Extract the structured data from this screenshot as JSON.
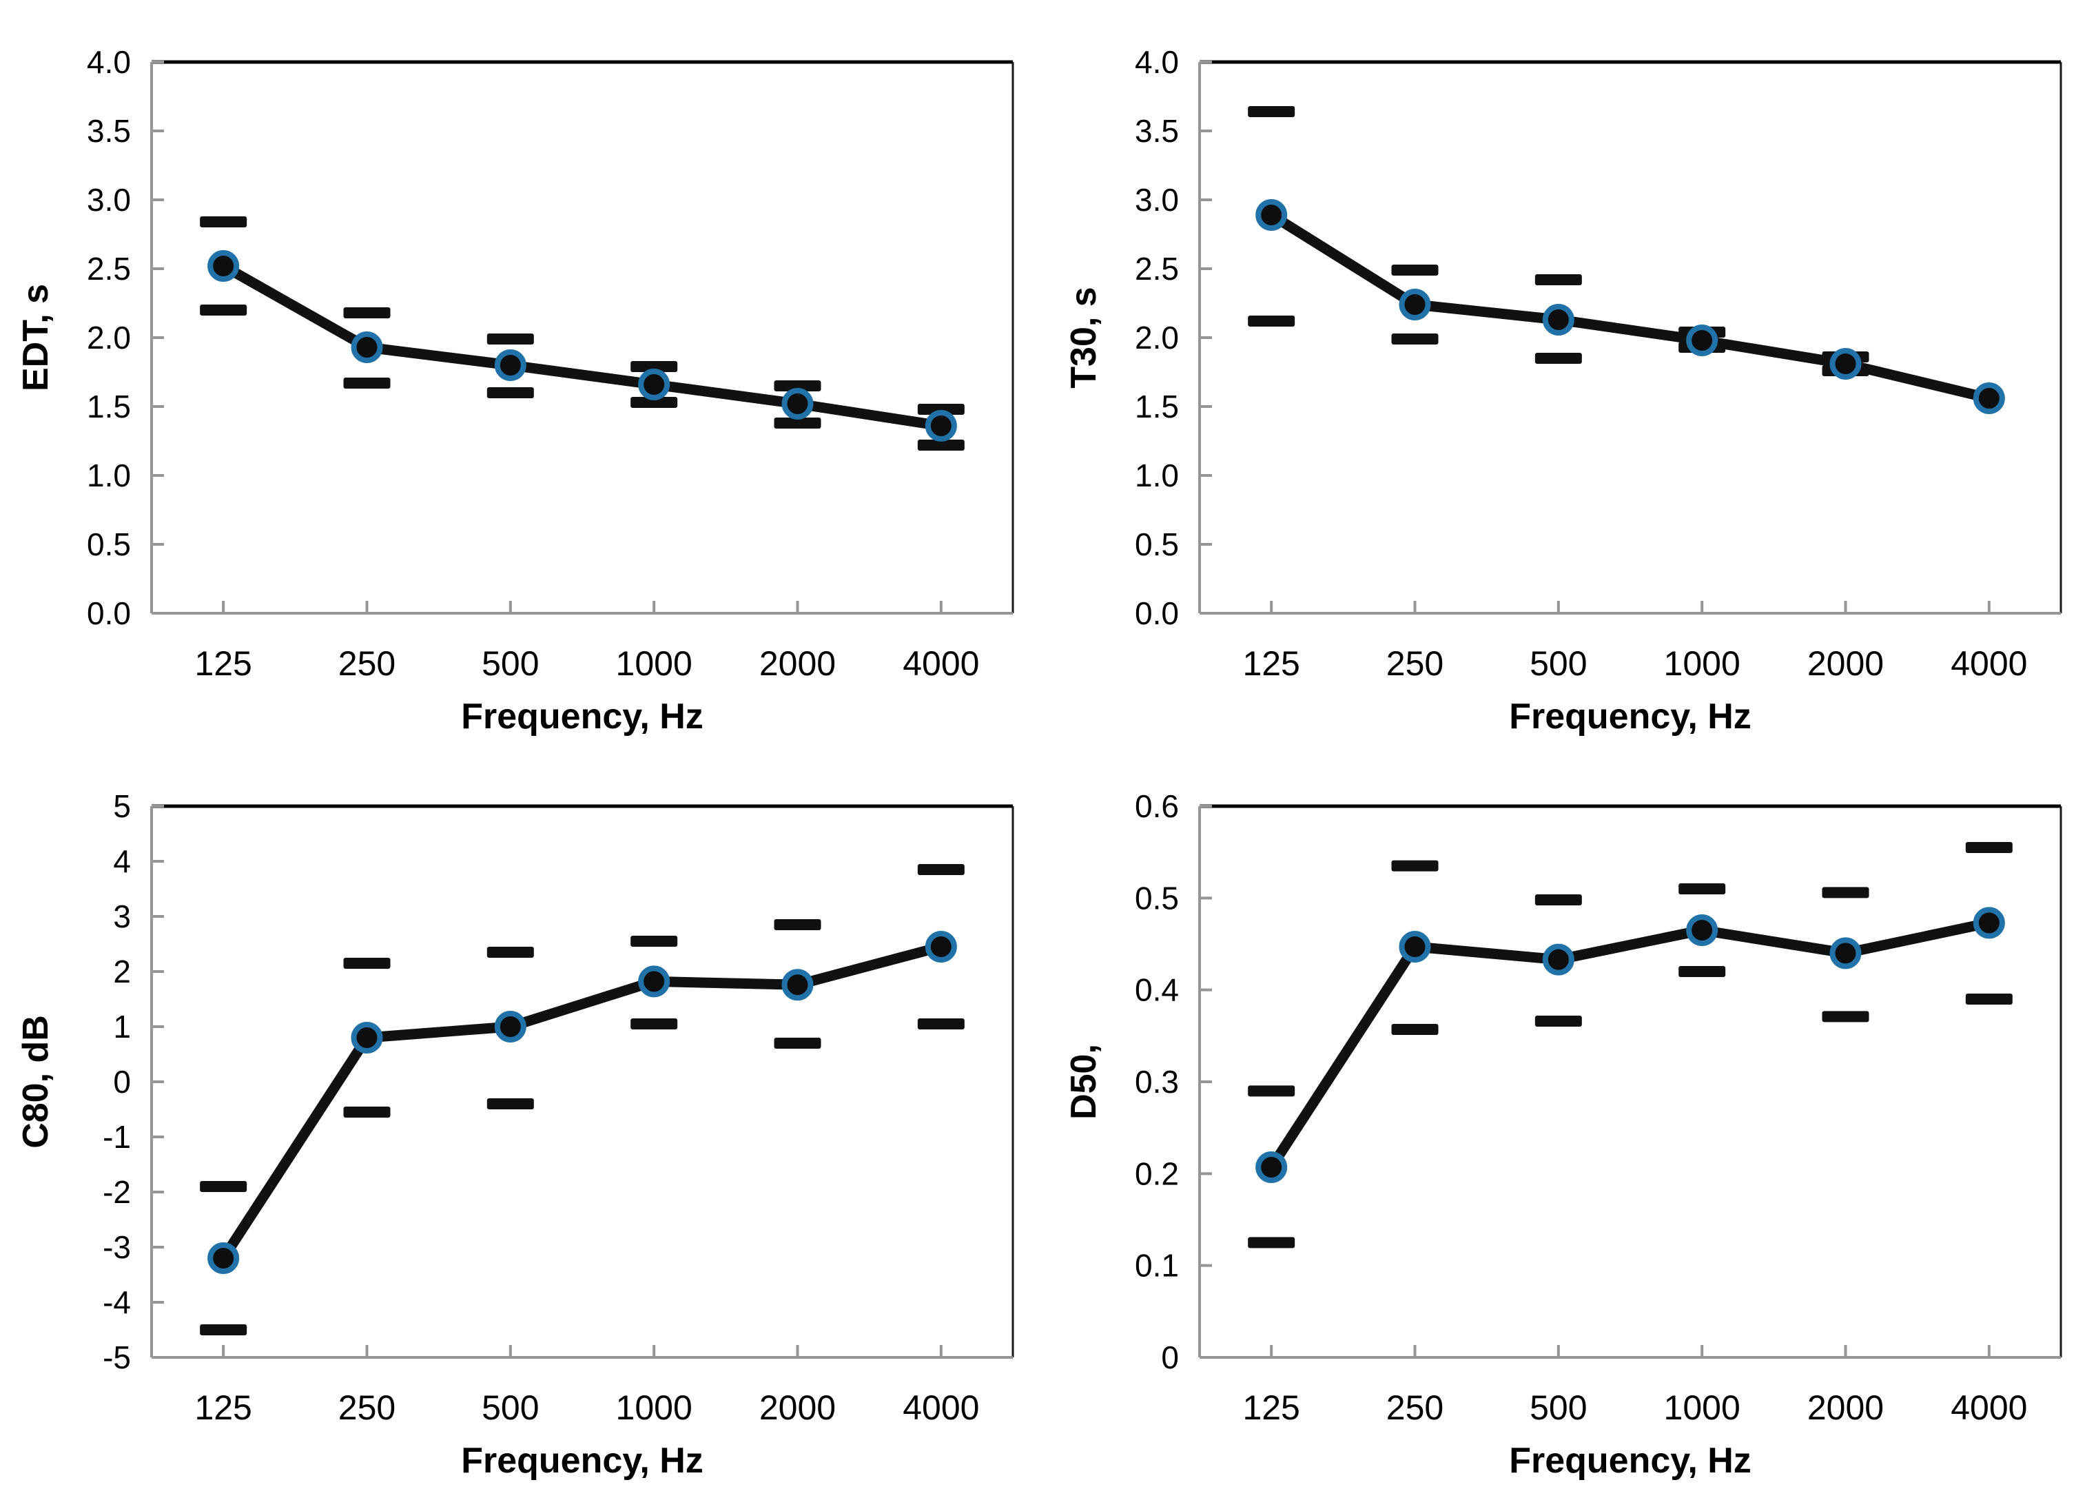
{
  "page": {
    "background": "#ffffff"
  },
  "style": {
    "series": "#111111",
    "marker_fill": "#0e0e0e",
    "marker_ring": "#2172a8",
    "axis": "#969696",
    "border_top": "#000000",
    "border_right": "#1a1a1a",
    "text": "#000000"
  },
  "chart_data": [
    {
      "type": "line",
      "title": "",
      "xlabel": "Frequency, Hz",
      "ylabel": "EDT, s",
      "categories": [
        "125",
        "250",
        "500",
        "1000",
        "2000",
        "4000"
      ],
      "values": [
        2.52,
        1.93,
        1.8,
        1.66,
        1.52,
        1.36
      ],
      "error_upper": [
        2.84,
        2.18,
        1.99,
        1.79,
        1.65,
        1.48
      ],
      "error_lower": [
        2.2,
        1.67,
        1.6,
        1.53,
        1.38,
        1.22
      ],
      "ylim": [
        0,
        4
      ],
      "yticks": [
        0,
        0.5,
        1.0,
        1.5,
        2.0,
        2.5,
        3.0,
        3.5,
        4.0
      ],
      "ytick_labels": [
        "0.0",
        "0.5",
        "1.0",
        "1.5",
        "2.0",
        "2.5",
        "3.0",
        "3.5",
        "4.0"
      ],
      "grid": false,
      "legend": "none"
    },
    {
      "type": "line",
      "title": "",
      "xlabel": "Frequency, Hz",
      "ylabel": "T30, s",
      "categories": [
        "125",
        "250",
        "500",
        "1000",
        "2000",
        "4000"
      ],
      "values": [
        2.89,
        2.24,
        2.13,
        1.98,
        1.81,
        1.56
      ],
      "error_upper": [
        3.64,
        2.49,
        2.42,
        2.04,
        1.86,
        null
      ],
      "error_lower": [
        2.12,
        1.99,
        1.85,
        1.93,
        1.76,
        null
      ],
      "ylim": [
        0,
        4
      ],
      "yticks": [
        0,
        0.5,
        1.0,
        1.5,
        2.0,
        2.5,
        3.0,
        3.5,
        4.0
      ],
      "ytick_labels": [
        "0.0",
        "0.5",
        "1.0",
        "1.5",
        "2.0",
        "2.5",
        "3.0",
        "3.5",
        "4.0"
      ],
      "grid": false,
      "legend": "none"
    },
    {
      "type": "line",
      "title": "",
      "xlabel": "Frequency, Hz",
      "ylabel": "C80, dB",
      "categories": [
        "125",
        "250",
        "500",
        "1000",
        "2000",
        "4000"
      ],
      "values": [
        -3.2,
        0.8,
        1.0,
        1.82,
        1.76,
        2.45
      ],
      "error_upper": [
        -1.9,
        2.15,
        2.35,
        2.55,
        2.85,
        3.85
      ],
      "error_lower": [
        -4.5,
        -0.55,
        -0.4,
        1.05,
        0.7,
        1.05
      ],
      "ylim": [
        -5,
        5
      ],
      "yticks": [
        -5,
        -4,
        -3,
        -2,
        -1,
        0,
        1,
        2,
        3,
        4,
        5
      ],
      "ytick_labels": [
        "-5",
        "-4",
        "-3",
        "-2",
        "-1",
        "0",
        "1",
        "2",
        "3",
        "4",
        "5"
      ],
      "grid": false,
      "legend": "none"
    },
    {
      "type": "line",
      "title": "",
      "xlabel": "Frequency, Hz",
      "ylabel": "D50,",
      "categories": [
        "125",
        "250",
        "500",
        "1000",
        "2000",
        "4000"
      ],
      "values": [
        0.207,
        0.447,
        0.433,
        0.465,
        0.44,
        0.473
      ],
      "error_upper": [
        0.29,
        0.535,
        0.498,
        0.51,
        0.506,
        0.555
      ],
      "error_lower": [
        0.125,
        0.357,
        0.366,
        0.42,
        0.371,
        0.39
      ],
      "ylim": [
        0,
        0.6
      ],
      "yticks": [
        0,
        0.1,
        0.2,
        0.3,
        0.4,
        0.5,
        0.6
      ],
      "ytick_labels": [
        "0",
        "0.1",
        "0.2",
        "0.3",
        "0.4",
        "0.5",
        "0.6"
      ],
      "grid": false,
      "legend": "none"
    }
  ]
}
